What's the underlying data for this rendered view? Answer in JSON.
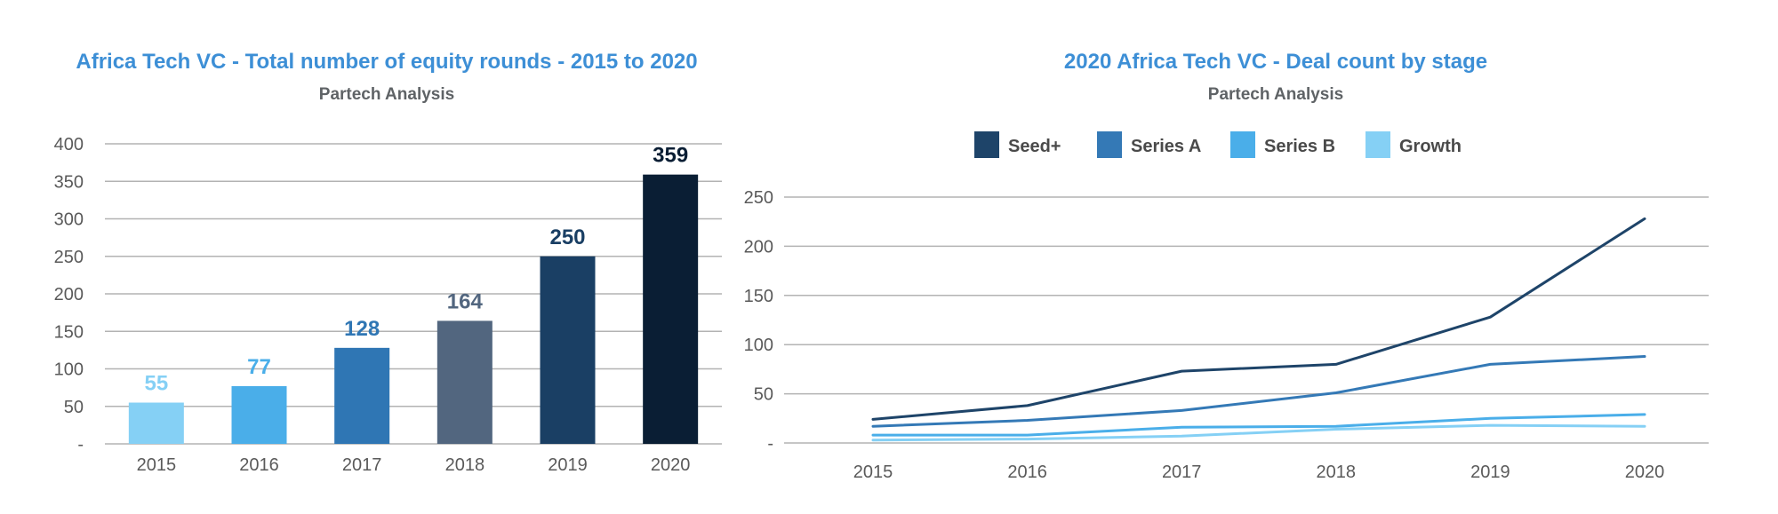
{
  "chart_data": [
    {
      "type": "bar",
      "title": "Africa Tech VC - Total number of equity rounds - 2015 to 2020",
      "subtitle": "Partech Analysis",
      "categories": [
        "2015",
        "2016",
        "2017",
        "2018",
        "2019",
        "2020"
      ],
      "values": [
        55,
        77,
        128,
        164,
        250,
        359
      ],
      "value_labels": [
        "55",
        "77",
        "128",
        "164",
        "250",
        "359"
      ],
      "bar_colors": [
        "#85d0f5",
        "#4aaee9",
        "#2f76b4",
        "#52667f",
        "#1a3f64",
        "#0a1e34"
      ],
      "label_colors": [
        "#85d0f5",
        "#4aaee9",
        "#2f76b4",
        "#52667f",
        "#1a3f64",
        "#0a1e34"
      ],
      "yticks": [
        "-",
        "50",
        "100",
        "150",
        "200",
        "250",
        "300",
        "350",
        "400"
      ],
      "ylim": [
        0,
        400
      ],
      "grid": true,
      "xlabel": "",
      "ylabel": ""
    },
    {
      "type": "line",
      "title": "2020 Africa Tech VC - Deal count by stage",
      "subtitle": "Partech Analysis",
      "x": [
        "2015",
        "2016",
        "2017",
        "2018",
        "2019",
        "2020"
      ],
      "series": [
        {
          "name": "Seed+",
          "color": "#1e4469",
          "values": [
            24,
            38,
            73,
            80,
            128,
            228
          ]
        },
        {
          "name": "Series A",
          "color": "#3479b6",
          "values": [
            17,
            23,
            33,
            51,
            80,
            88
          ]
        },
        {
          "name": "Series B",
          "color": "#4aaee9",
          "values": [
            8,
            8,
            16,
            17,
            25,
            29
          ]
        },
        {
          "name": "Growth",
          "color": "#85d0f5",
          "values": [
            3,
            4,
            7,
            14,
            18,
            17
          ]
        }
      ],
      "yticks": [
        "-",
        "50",
        "100",
        "150",
        "200",
        "250"
      ],
      "ylim": [
        0,
        250
      ],
      "legend_position": "top",
      "grid": true,
      "xlabel": "",
      "ylabel": ""
    }
  ]
}
